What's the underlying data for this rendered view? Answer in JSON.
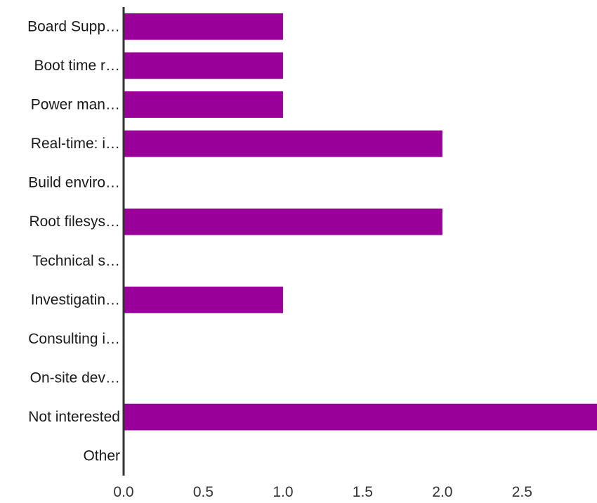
{
  "chart_data": {
    "type": "bar",
    "orientation": "horizontal",
    "categories": [
      "Board Supp…",
      "Boot time r…",
      "Power man…",
      "Real-time: i…",
      "Build enviro…",
      "Root filesys…",
      "Technical s…",
      "Investigatin…",
      "Consulting i…",
      "On-site dev…",
      "Not interested",
      "Other"
    ],
    "values": [
      1,
      1,
      1,
      2,
      0,
      2,
      0,
      1,
      0,
      0,
      3,
      0
    ],
    "xticks": [
      "0.0",
      "0.5",
      "1.0",
      "1.5",
      "2.0",
      "2.5"
    ],
    "xlim": [
      0,
      2.97
    ],
    "title": "",
    "xlabel": "",
    "ylabel": "",
    "grid": false,
    "bar_color": "#990099",
    "axis_color": "#333333"
  }
}
